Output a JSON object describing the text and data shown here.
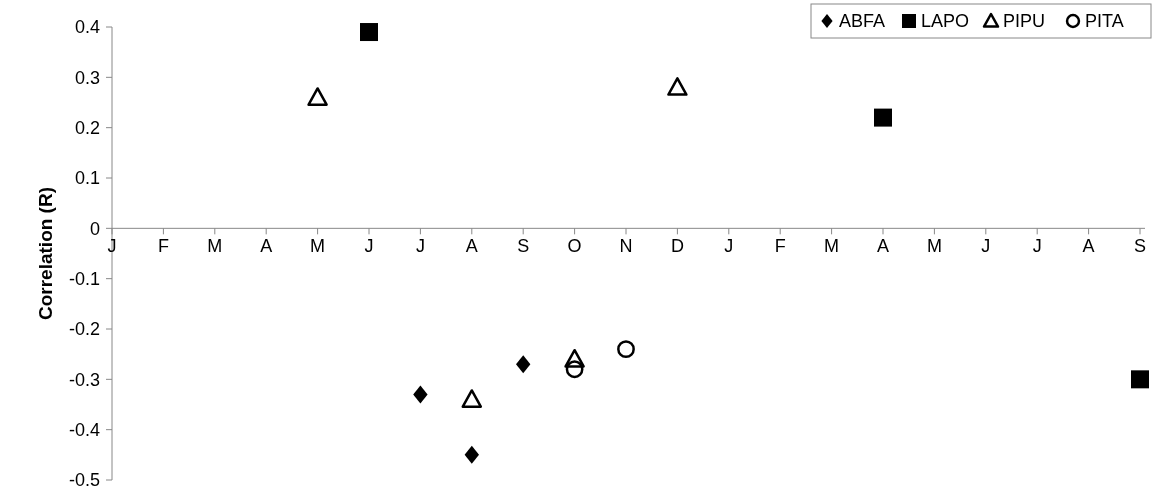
{
  "chart_data": {
    "type": "scatter",
    "ylabel": "Correlation (R)",
    "categories": [
      "J",
      "F",
      "M",
      "A",
      "M",
      "J",
      "J",
      "A",
      "S",
      "O",
      "N",
      "D",
      "J",
      "F",
      "M",
      "A",
      "M",
      "J",
      "J",
      "A",
      "S"
    ],
    "ylim": [
      -0.5,
      0.4
    ],
    "yticks": [
      {
        "value": -0.5,
        "label": "-0.5"
      },
      {
        "value": -0.4,
        "label": "-0.4"
      },
      {
        "value": -0.3,
        "label": "-0.3"
      },
      {
        "value": -0.2,
        "label": "-0.2"
      },
      {
        "value": -0.1,
        "label": "-0.1"
      },
      {
        "value": 0,
        "label": "0"
      },
      {
        "value": 0.1,
        "label": "0.1"
      },
      {
        "value": 0.2,
        "label": "0.2"
      },
      {
        "value": 0.3,
        "label": "0.3"
      },
      {
        "value": 0.4,
        "label": "0.4"
      }
    ],
    "grid": false,
    "legend": "top right",
    "series": [
      {
        "name": "ABFA",
        "color": "#000000",
        "marker": "diamond",
        "values": [
          null,
          null,
          null,
          null,
          null,
          null,
          -0.33,
          -0.45,
          -0.27,
          null,
          null,
          null,
          null,
          null,
          null,
          null,
          null,
          null,
          null,
          null,
          null
        ]
      },
      {
        "name": "LAPO",
        "color": "#000000",
        "marker": "square",
        "values": [
          null,
          null,
          null,
          null,
          null,
          0.39,
          null,
          null,
          null,
          null,
          null,
          null,
          null,
          null,
          null,
          0.22,
          null,
          null,
          null,
          null,
          -0.3
        ]
      },
      {
        "name": "PIPU",
        "color": "#000000",
        "marker": "triangle",
        "values": [
          null,
          null,
          null,
          null,
          0.26,
          null,
          null,
          -0.34,
          null,
          -0.26,
          null,
          0.28,
          null,
          null,
          null,
          null,
          null,
          null,
          null,
          null,
          null
        ]
      },
      {
        "name": "PITA",
        "color": "#000000",
        "marker": "circle",
        "values": [
          null,
          null,
          null,
          null,
          null,
          null,
          null,
          null,
          null,
          -0.28,
          -0.24,
          null,
          null,
          null,
          null,
          null,
          null,
          null,
          null,
          null,
          null
        ]
      }
    ]
  }
}
